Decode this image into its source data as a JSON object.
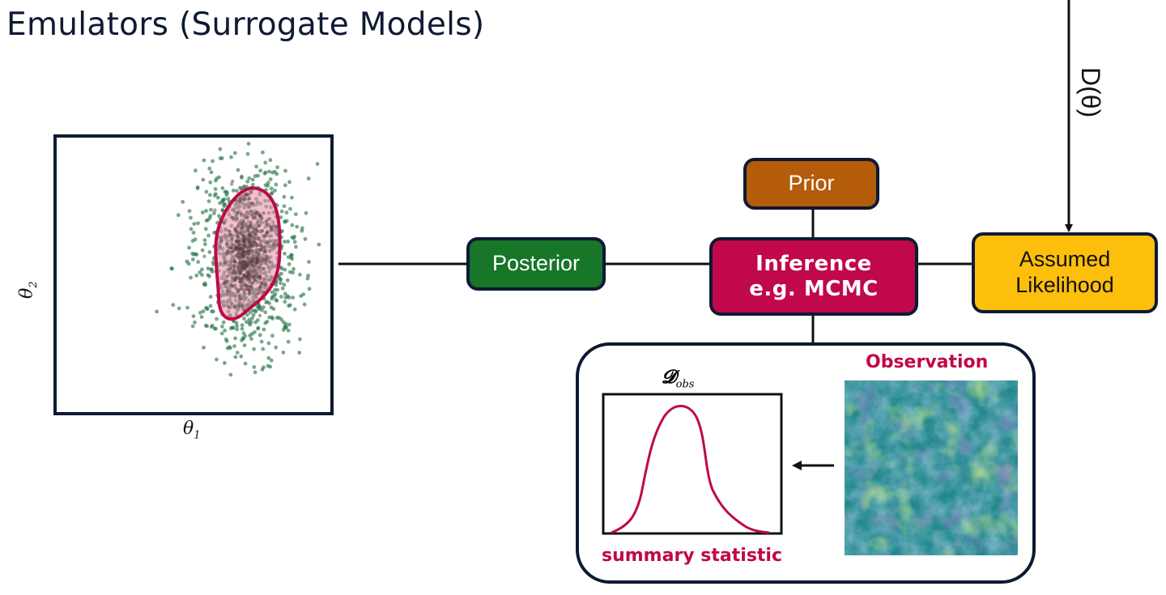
{
  "title": "Emulators (Surrogate Models)",
  "nodes": {
    "prior": "Prior",
    "posterior": "Posterior",
    "inference_line1": "Inference",
    "inference_line2": "e.g. MCMC",
    "likelihood_line1": "Assumed",
    "likelihood_line2": "Likelihood"
  },
  "edge_label_top": "D(θ)",
  "observation_panel": {
    "observation_label": "Observation",
    "summary_label": "summary statistic",
    "dobs_symbol": "𝓓",
    "dobs_subscript": "obs"
  },
  "posterior_plot": {
    "xlabel_symbol": "θ",
    "xlabel_sub": "1",
    "ylabel_symbol": "θ",
    "ylabel_sub": "2"
  },
  "colors": {
    "navy": "#0e1a33",
    "prior": "#b45c0a",
    "posterior": "#177628",
    "inference": "#c0084a",
    "likelihood": "#fdbf0c",
    "contour_fill": "#e88aa8",
    "scatter": "#2f7a4e"
  }
}
